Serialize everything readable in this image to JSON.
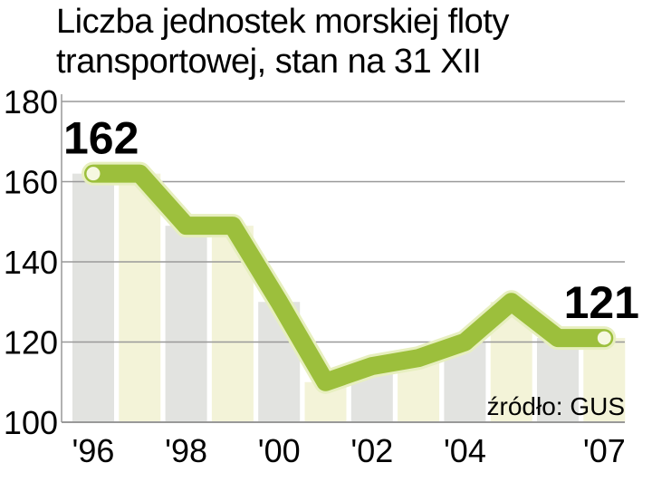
{
  "title_lines": [
    "Liczba jednostek morskiej floty",
    "transportowej, stan na 31 XII"
  ],
  "source": "źródło: GUS",
  "colors": {
    "line": "#9cbf3c",
    "line_edge": "#e7efbf",
    "bar_gray": "#e2e3e0",
    "bar_cream": "#f3f3d8",
    "grid": "#999999",
    "marker": "#f6f8e0"
  },
  "chart_data": {
    "type": "line",
    "title": "Liczba jednostek morskiej floty transportowej, stan na 31 XII",
    "xlabel": "",
    "ylabel": "",
    "x": [
      1996,
      1997,
      1998,
      1999,
      2000,
      2001,
      2002,
      2003,
      2004,
      2005,
      2006,
      2007
    ],
    "values": [
      162,
      162,
      149,
      149,
      130,
      110,
      114,
      116,
      120,
      130,
      121,
      121
    ],
    "ylim": [
      100,
      180
    ],
    "yticks": [
      100,
      120,
      140,
      160,
      180
    ],
    "xticks": [
      {
        "x": 1996,
        "label": "'96"
      },
      {
        "x": 1998,
        "label": "'98"
      },
      {
        "x": 2000,
        "label": "'00"
      },
      {
        "x": 2002,
        "label": "'02"
      },
      {
        "x": 2004,
        "label": "'04"
      },
      {
        "x": 2007,
        "label": "'07"
      }
    ],
    "annotations": [
      {
        "x": 1996,
        "text": "162"
      },
      {
        "x": 2007,
        "text": "121"
      }
    ],
    "grid": true
  }
}
